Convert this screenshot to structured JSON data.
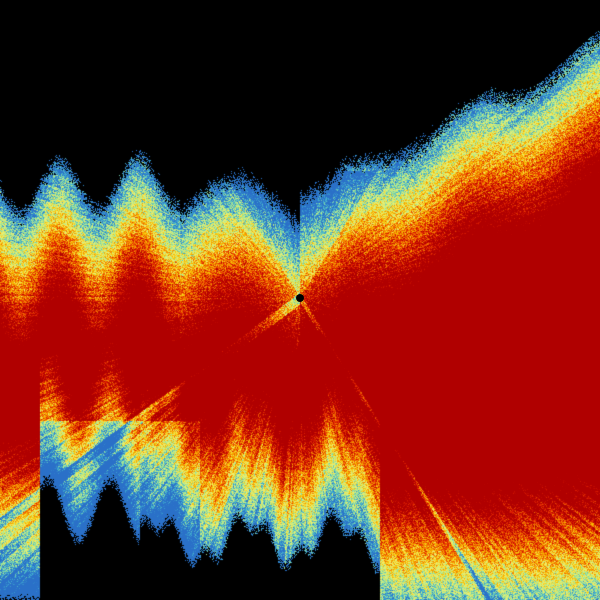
{
  "image": {
    "kind": "radar-reflectivity-sweep",
    "background_color": "#000000",
    "palette": [
      "#2a70c8",
      "#40b0d0",
      "#a8e890",
      "#f0f070",
      "#f8c000",
      "#f07000",
      "#e02000",
      "#b00000"
    ]
  }
}
